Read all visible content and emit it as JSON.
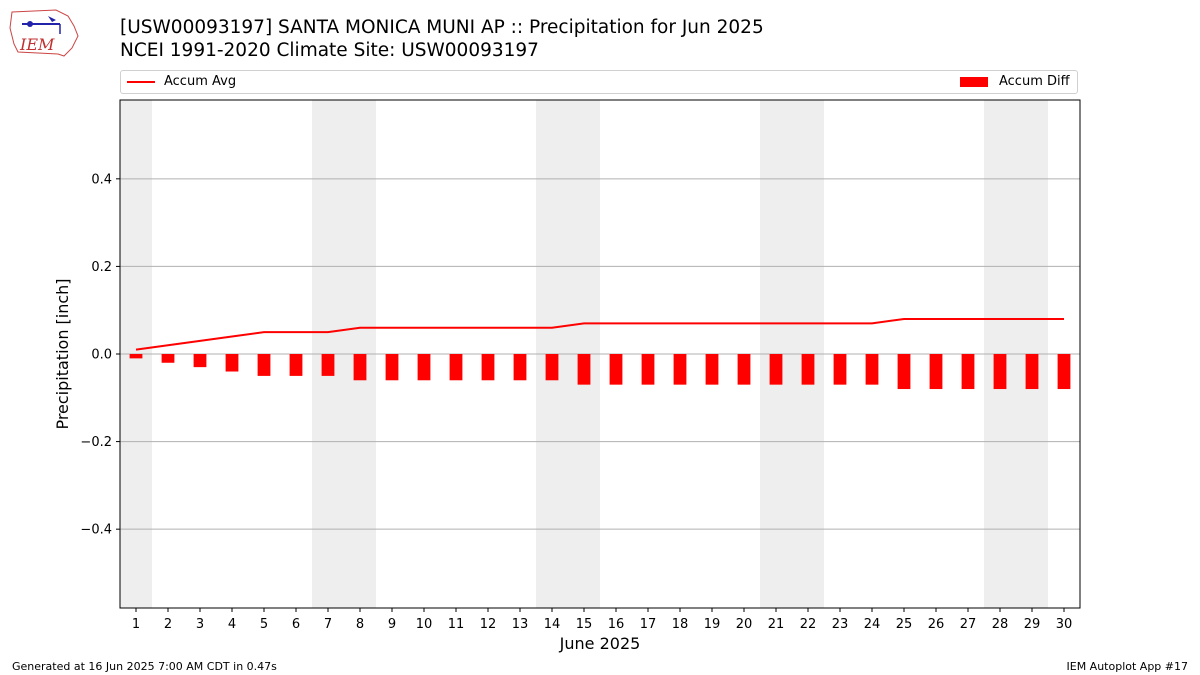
{
  "logo": {
    "text": "IEM"
  },
  "header": {
    "title": "[USW00093197] SANTA MONICA MUNI AP :: Precipitation for Jun 2025",
    "subtitle": "NCEI 1991-2020 Climate Site: USW00093197"
  },
  "legend": {
    "line_label": "Accum Avg",
    "bar_label": "Accum Diff",
    "placement": "top (above plot)"
  },
  "footer": {
    "left": "Generated at 16 Jun 2025 7:00 AM CDT in 0.47s",
    "right": "IEM Autoplot App #17"
  },
  "colors": {
    "accent": "#ff0000",
    "weekend_band": "#eeeeee",
    "grid": "#b0b0b0"
  },
  "chart_data": {
    "type": "bar",
    "xlabel": "June 2025",
    "ylabel": "Precipitation [inch]",
    "xlim": [
      0.5,
      30.5
    ],
    "ylim": [
      -0.58,
      0.58
    ],
    "yticks": [
      0.4,
      0.2,
      0.0,
      -0.2,
      -0.4
    ],
    "ytick_labels": [
      "0.4",
      "0.2",
      "0.0",
      "−0.2",
      "−0.4"
    ],
    "grid": "horizontal",
    "x": [
      1,
      2,
      3,
      4,
      5,
      6,
      7,
      8,
      9,
      10,
      11,
      12,
      13,
      14,
      15,
      16,
      17,
      18,
      19,
      20,
      21,
      22,
      23,
      24,
      25,
      26,
      27,
      28,
      29,
      30
    ],
    "xtick_labels": [
      "1",
      "2",
      "3",
      "4",
      "5",
      "6",
      "7",
      "8",
      "9",
      "10",
      "11",
      "12",
      "13",
      "14",
      "15",
      "16",
      "17",
      "18",
      "19",
      "20",
      "21",
      "22",
      "23",
      "24",
      "25",
      "26",
      "27",
      "28",
      "29",
      "30"
    ],
    "weekend_days": [
      1,
      7,
      8,
      14,
      15,
      21,
      22,
      28,
      29
    ],
    "series": [
      {
        "name": "Accum Avg",
        "kind": "line",
        "color": "#ff0000",
        "values": [
          0.01,
          0.02,
          0.03,
          0.04,
          0.05,
          0.05,
          0.05,
          0.06,
          0.06,
          0.06,
          0.06,
          0.06,
          0.06,
          0.06,
          0.07,
          0.07,
          0.07,
          0.07,
          0.07,
          0.07,
          0.07,
          0.07,
          0.07,
          0.07,
          0.08,
          0.08,
          0.08,
          0.08,
          0.08,
          0.08
        ]
      },
      {
        "name": "Accum Diff",
        "kind": "bar",
        "color": "#ff0000",
        "values": [
          -0.01,
          -0.02,
          -0.03,
          -0.04,
          -0.05,
          -0.05,
          -0.05,
          -0.06,
          -0.06,
          -0.06,
          -0.06,
          -0.06,
          -0.06,
          -0.06,
          -0.07,
          -0.07,
          -0.07,
          -0.07,
          -0.07,
          -0.07,
          -0.07,
          -0.07,
          -0.07,
          -0.07,
          -0.08,
          -0.08,
          -0.08,
          -0.08,
          -0.08,
          -0.08
        ]
      }
    ]
  }
}
